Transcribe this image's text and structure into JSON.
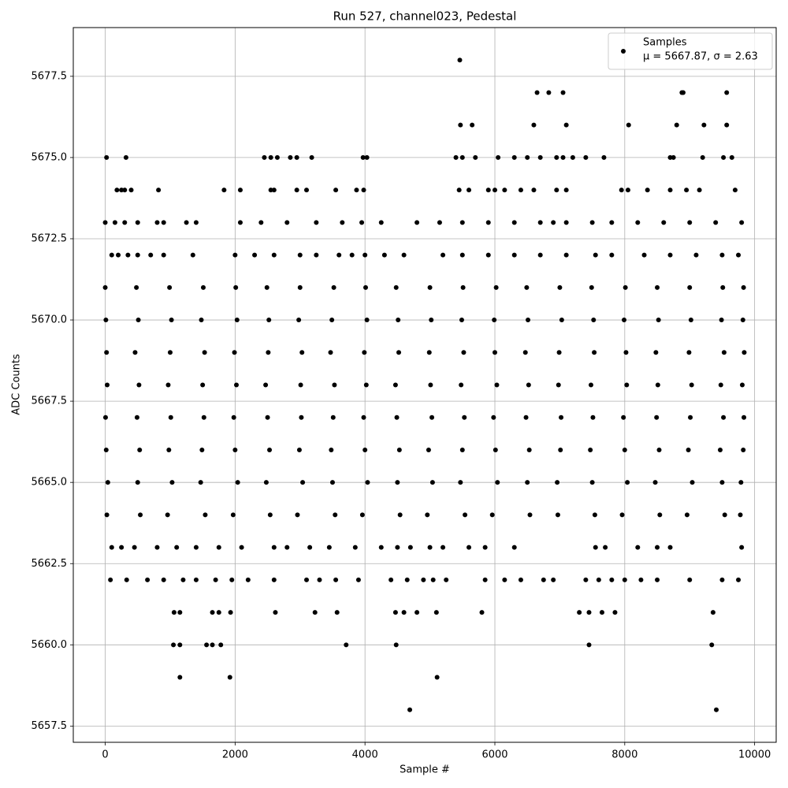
{
  "chart_data": {
    "type": "scatter",
    "title": "Run 527, channel023, Pedestal",
    "xlabel": "Sample #",
    "ylabel": "ADC Counts",
    "legend_stats": "μ = 5667.87, σ = 2.63",
    "legend": "upper right",
    "grid": true,
    "xlim": [
      -492,
      10332
    ],
    "ylim": [
      5657,
      5679
    ],
    "xticks": [
      0,
      2000,
      4000,
      6000,
      8000,
      10000
    ],
    "yticks": [
      5657.5,
      {
        "value": 5660,
        "label": "5660.0"
      },
      5662.5,
      {
        "value": 5665,
        "label": "5665.0"
      },
      5667.5,
      {
        "value": 5670,
        "label": "5670.0"
      },
      5672.5,
      {
        "value": 5675,
        "label": "5675.0"
      },
      5677.5
    ],
    "x": [
      5460,
      6650,
      6830,
      7050,
      8880,
      8900,
      9570,
      5470,
      5650,
      6600,
      7100,
      8060,
      8800,
      9220,
      9570,
      20,
      320,
      2450,
      2550,
      2650,
      2850,
      2950,
      3180,
      3970,
      4030,
      5400,
      5500,
      5700,
      6050,
      6300,
      6500,
      6700,
      6950,
      7050,
      7200,
      7400,
      7680,
      8700,
      8750,
      9200,
      9520,
      9650,
      180,
      250,
      300,
      400,
      820,
      1830,
      2080,
      2550,
      2600,
      2950,
      3100,
      3550,
      3870,
      3980,
      5450,
      5600,
      5900,
      6000,
      6150,
      6400,
      6600,
      6950,
      7100,
      7950,
      8050,
      8350,
      8700,
      8950,
      9150,
      9700,
      0,
      150,
      300,
      500,
      800,
      900,
      1250,
      1400,
      2080,
      2400,
      2800,
      3250,
      3650,
      3950,
      4250,
      4800,
      5150,
      5500,
      5900,
      6300,
      6700,
      6900,
      7100,
      7500,
      7800,
      8200,
      8600,
      9000,
      9400,
      9800,
      100,
      200,
      350,
      500,
      700,
      900,
      1350,
      2000,
      2300,
      2600,
      3000,
      3250,
      3600,
      3800,
      4000,
      4300,
      4600,
      5200,
      5500,
      5900,
      6300,
      6700,
      7100,
      7550,
      7800,
      8300,
      8700,
      9100,
      9500,
      9750,
      0,
      480,
      990,
      1510,
      2010,
      2490,
      3000,
      3520,
      4010,
      4480,
      5000,
      5510,
      6020,
      6490,
      7000,
      7490,
      8010,
      8500,
      9000,
      9510,
      9830,
      10,
      510,
      1020,
      1480,
      2030,
      2520,
      2980,
      3490,
      4030,
      4510,
      5020,
      5490,
      5990,
      6510,
      7030,
      7520,
      7990,
      8520,
      9020,
      9490,
      9820,
      20,
      460,
      1000,
      1530,
      1990,
      2510,
      3030,
      3470,
      3990,
      4520,
      4990,
      5520,
      6000,
      6470,
      6990,
      7530,
      8020,
      8480,
      8990,
      9530,
      9840,
      30,
      520,
      970,
      1500,
      2020,
      2470,
      3010,
      3530,
      4020,
      4470,
      5010,
      5480,
      6030,
      6520,
      6980,
      7480,
      8030,
      8510,
      9030,
      9480,
      9810,
      5,
      490,
      1010,
      1520,
      1980,
      2500,
      3020,
      3510,
      3980,
      4490,
      5030,
      5530,
      5980,
      6480,
      7020,
      7510,
      7980,
      8490,
      9010,
      9520,
      9835,
      15,
      530,
      980,
      1490,
      2000,
      2530,
      2990,
      3480,
      4000,
      4530,
      4980,
      5500,
      6010,
      6530,
      7010,
      7470,
      8000,
      8530,
      8980,
      9470,
      9825,
      40,
      500,
      1030,
      1470,
      2040,
      2480,
      3040,
      3500,
      4040,
      4500,
      5040,
      5470,
      6040,
      6500,
      6960,
      7500,
      8040,
      8470,
      9040,
      9500,
      9790,
      25,
      540,
      960,
      1540,
      1970,
      2540,
      2960,
      3540,
      3960,
      4540,
      4960,
      5540,
      5960,
      6540,
      6970,
      7540,
      7960,
      8540,
      8960,
      9540,
      9780,
      100,
      250,
      450,
      800,
      1100,
      1400,
      1750,
      2100,
      2600,
      2800,
      3150,
      3450,
      3850,
      4250,
      4500,
      4700,
      5000,
      5200,
      5600,
      5850,
      6300,
      7550,
      7700,
      8200,
      8500,
      8700,
      9800,
      80,
      330,
      650,
      900,
      1200,
      1400,
      1700,
      1950,
      2200,
      2600,
      3100,
      3300,
      3550,
      3900,
      4400,
      4650,
      4900,
      5050,
      5250,
      5850,
      6150,
      6400,
      6750,
      6900,
      7400,
      7600,
      7800,
      8000,
      8250,
      8500,
      9000,
      9500,
      9750,
      1060,
      1150,
      1650,
      1750,
      1930,
      2620,
      3230,
      3570,
      4470,
      4600,
      4800,
      5100,
      5800,
      7300,
      7450,
      7650,
      7850,
      9360,
      1050,
      1150,
      1560,
      1650,
      1780,
      3710,
      4480,
      7450,
      9340,
      1150,
      1920,
      5110,
      4690,
      9410
    ],
    "series": [
      {
        "name": "Samples",
        "color": "#000000",
        "values": [
          5678,
          5677,
          5677,
          5677,
          5677,
          5677,
          5677,
          5676,
          5676,
          5676,
          5676,
          5676,
          5676,
          5676,
          5676,
          5675,
          5675,
          5675,
          5675,
          5675,
          5675,
          5675,
          5675,
          5675,
          5675,
          5675,
          5675,
          5675,
          5675,
          5675,
          5675,
          5675,
          5675,
          5675,
          5675,
          5675,
          5675,
          5675,
          5675,
          5675,
          5675,
          5675,
          5674,
          5674,
          5674,
          5674,
          5674,
          5674,
          5674,
          5674,
          5674,
          5674,
          5674,
          5674,
          5674,
          5674,
          5674,
          5674,
          5674,
          5674,
          5674,
          5674,
          5674,
          5674,
          5674,
          5674,
          5674,
          5674,
          5674,
          5674,
          5674,
          5674,
          5673,
          5673,
          5673,
          5673,
          5673,
          5673,
          5673,
          5673,
          5673,
          5673,
          5673,
          5673,
          5673,
          5673,
          5673,
          5673,
          5673,
          5673,
          5673,
          5673,
          5673,
          5673,
          5673,
          5673,
          5673,
          5673,
          5673,
          5673,
          5673,
          5673,
          5672,
          5672,
          5672,
          5672,
          5672,
          5672,
          5672,
          5672,
          5672,
          5672,
          5672,
          5672,
          5672,
          5672,
          5672,
          5672,
          5672,
          5672,
          5672,
          5672,
          5672,
          5672,
          5672,
          5672,
          5672,
          5672,
          5672,
          5672,
          5672,
          5672,
          5671,
          5671,
          5671,
          5671,
          5671,
          5671,
          5671,
          5671,
          5671,
          5671,
          5671,
          5671,
          5671,
          5671,
          5671,
          5671,
          5671,
          5671,
          5671,
          5671,
          5671,
          5670,
          5670,
          5670,
          5670,
          5670,
          5670,
          5670,
          5670,
          5670,
          5670,
          5670,
          5670,
          5670,
          5670,
          5670,
          5670,
          5670,
          5670,
          5670,
          5670,
          5670,
          5669,
          5669,
          5669,
          5669,
          5669,
          5669,
          5669,
          5669,
          5669,
          5669,
          5669,
          5669,
          5669,
          5669,
          5669,
          5669,
          5669,
          5669,
          5669,
          5669,
          5669,
          5668,
          5668,
          5668,
          5668,
          5668,
          5668,
          5668,
          5668,
          5668,
          5668,
          5668,
          5668,
          5668,
          5668,
          5668,
          5668,
          5668,
          5668,
          5668,
          5668,
          5668,
          5667,
          5667,
          5667,
          5667,
          5667,
          5667,
          5667,
          5667,
          5667,
          5667,
          5667,
          5667,
          5667,
          5667,
          5667,
          5667,
          5667,
          5667,
          5667,
          5667,
          5667,
          5666,
          5666,
          5666,
          5666,
          5666,
          5666,
          5666,
          5666,
          5666,
          5666,
          5666,
          5666,
          5666,
          5666,
          5666,
          5666,
          5666,
          5666,
          5666,
          5666,
          5666,
          5665,
          5665,
          5665,
          5665,
          5665,
          5665,
          5665,
          5665,
          5665,
          5665,
          5665,
          5665,
          5665,
          5665,
          5665,
          5665,
          5665,
          5665,
          5665,
          5665,
          5665,
          5664,
          5664,
          5664,
          5664,
          5664,
          5664,
          5664,
          5664,
          5664,
          5664,
          5664,
          5664,
          5664,
          5664,
          5664,
          5664,
          5664,
          5664,
          5664,
          5664,
          5664,
          5663,
          5663,
          5663,
          5663,
          5663,
          5663,
          5663,
          5663,
          5663,
          5663,
          5663,
          5663,
          5663,
          5663,
          5663,
          5663,
          5663,
          5663,
          5663,
          5663,
          5663,
          5663,
          5663,
          5663,
          5663,
          5663,
          5663,
          5662,
          5662,
          5662,
          5662,
          5662,
          5662,
          5662,
          5662,
          5662,
          5662,
          5662,
          5662,
          5662,
          5662,
          5662,
          5662,
          5662,
          5662,
          5662,
          5662,
          5662,
          5662,
          5662,
          5662,
          5662,
          5662,
          5662,
          5662,
          5662,
          5662,
          5662,
          5662,
          5662,
          5661,
          5661,
          5661,
          5661,
          5661,
          5661,
          5661,
          5661,
          5661,
          5661,
          5661,
          5661,
          5661,
          5661,
          5661,
          5661,
          5661,
          5661,
          5660,
          5660,
          5660,
          5660,
          5660,
          5660,
          5660,
          5660,
          5660,
          5659,
          5659,
          5659,
          5658,
          5658
        ]
      }
    ]
  }
}
